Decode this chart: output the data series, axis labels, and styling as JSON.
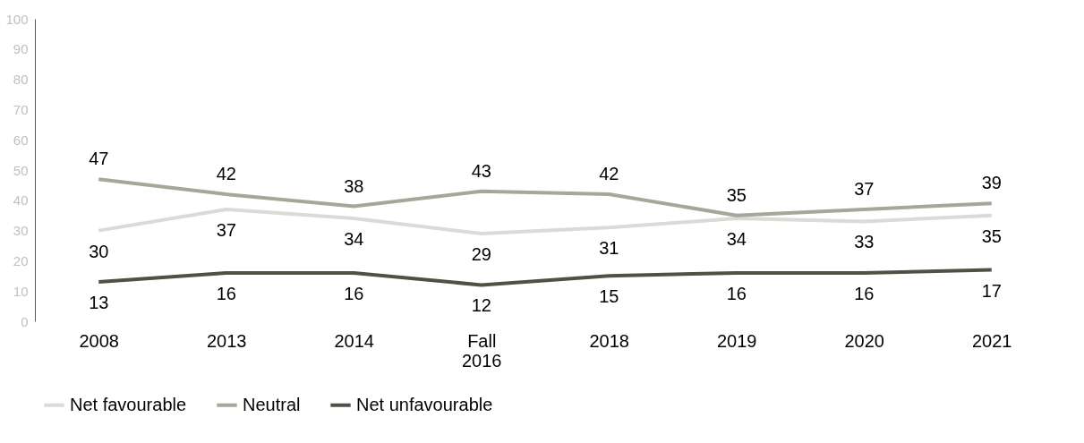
{
  "chart_data": {
    "type": "line",
    "categories": [
      "2008",
      "2013",
      "2014",
      "Fall 2016",
      "2018",
      "2019",
      "2020",
      "2021"
    ],
    "series": [
      {
        "name": "Net favourable",
        "color": "#dadad6",
        "values": [
          30,
          37,
          34,
          29,
          31,
          34,
          33,
          35
        ]
      },
      {
        "name": "Neutral",
        "color": "#a5a898",
        "values": [
          47,
          42,
          38,
          43,
          42,
          35,
          37,
          39
        ]
      },
      {
        "name": "Net unfavourable",
        "color": "#4d5244",
        "values": [
          13,
          16,
          16,
          12,
          15,
          16,
          16,
          17
        ]
      }
    ],
    "ylim": [
      0,
      100
    ],
    "yticks": [
      0,
      10,
      20,
      30,
      40,
      50,
      60,
      70,
      80,
      90,
      100
    ],
    "grid": false,
    "legend": "bottom",
    "data_labels": true,
    "marker": "none",
    "line_style": "solid"
  }
}
